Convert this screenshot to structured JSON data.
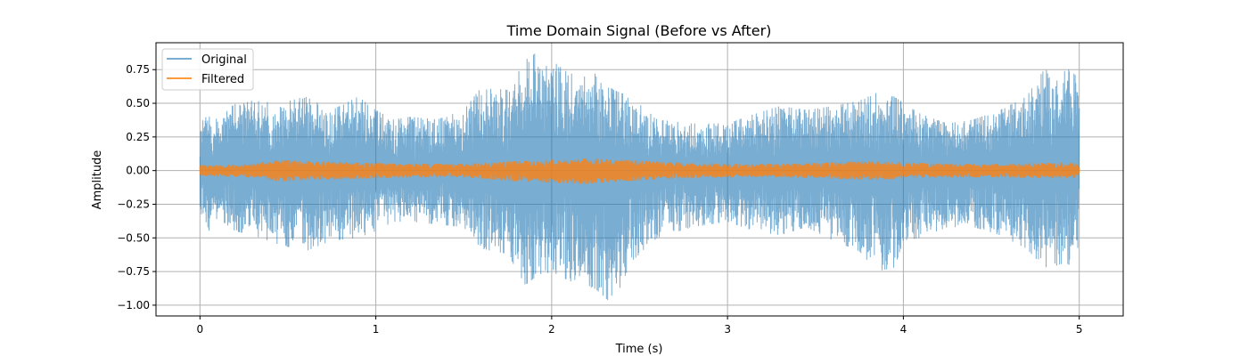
{
  "chart_data": {
    "type": "line",
    "title": "Time Domain Signal (Before vs After)",
    "xlabel": "Time (s)",
    "ylabel": "Amplitude",
    "xlim": [
      -0.25,
      5.25
    ],
    "ylim": [
      -1.08,
      0.95
    ],
    "xticks": [
      0,
      1,
      2,
      3,
      4,
      5
    ],
    "xtick_labels": [
      "0",
      "1",
      "2",
      "3",
      "4",
      "5"
    ],
    "yticks": [
      -1.0,
      -0.75,
      -0.5,
      -0.25,
      0.0,
      0.25,
      0.5,
      0.75
    ],
    "ytick_labels": [
      "−1.00",
      "−0.75",
      "−0.50",
      "−0.25",
      "0.00",
      "0.25",
      "0.50",
      "0.75"
    ],
    "grid": true,
    "legend_position": "top-left",
    "x_range": [
      0,
      5
    ],
    "series": [
      {
        "name": "Original",
        "color": "#1f77b4",
        "alpha": 0.6,
        "envelope": {
          "t": [
            0.0,
            0.05,
            0.1,
            0.2,
            0.3,
            0.45,
            0.6,
            0.75,
            0.9,
            1.0,
            1.1,
            1.2,
            1.35,
            1.5,
            1.6,
            1.75,
            1.85,
            1.9,
            2.0,
            2.1,
            2.25,
            2.35,
            2.45,
            2.6,
            2.8,
            3.0,
            3.15,
            3.3,
            3.45,
            3.6,
            3.75,
            3.85,
            3.95,
            4.0,
            4.1,
            4.25,
            4.4,
            4.55,
            4.7,
            4.8,
            4.9,
            4.95,
            5.0
          ],
          "upper": [
            0.35,
            0.42,
            0.38,
            0.5,
            0.52,
            0.5,
            0.55,
            0.45,
            0.55,
            0.45,
            0.38,
            0.4,
            0.38,
            0.45,
            0.62,
            0.6,
            0.82,
            0.87,
            0.82,
            0.72,
            0.72,
            0.6,
            0.55,
            0.38,
            0.35,
            0.35,
            0.42,
            0.48,
            0.45,
            0.48,
            0.52,
            0.58,
            0.55,
            0.5,
            0.42,
            0.35,
            0.38,
            0.45,
            0.55,
            0.75,
            0.72,
            0.78,
            0.65
          ],
          "lower": [
            -0.3,
            -0.45,
            -0.35,
            -0.45,
            -0.48,
            -0.55,
            -0.6,
            -0.52,
            -0.5,
            -0.45,
            -0.38,
            -0.38,
            -0.4,
            -0.42,
            -0.58,
            -0.62,
            -0.85,
            -0.8,
            -0.75,
            -0.82,
            -0.88,
            -1.0,
            -0.68,
            -0.5,
            -0.42,
            -0.38,
            -0.45,
            -0.48,
            -0.42,
            -0.52,
            -0.6,
            -0.75,
            -0.72,
            -0.52,
            -0.5,
            -0.42,
            -0.42,
            -0.48,
            -0.58,
            -0.72,
            -0.7,
            -0.7,
            -0.55
          ]
        }
      },
      {
        "name": "Filtered",
        "color": "#ff7f0e",
        "alpha": 0.8,
        "envelope": {
          "t": [
            0.0,
            0.3,
            0.45,
            0.6,
            0.9,
            1.2,
            1.5,
            1.8,
            2.0,
            2.2,
            2.4,
            2.7,
            3.0,
            3.3,
            3.6,
            3.8,
            4.0,
            4.3,
            4.6,
            4.9,
            5.0
          ],
          "upper": [
            0.04,
            0.05,
            0.08,
            0.07,
            0.06,
            0.05,
            0.05,
            0.07,
            0.08,
            0.09,
            0.08,
            0.06,
            0.05,
            0.05,
            0.06,
            0.07,
            0.06,
            0.05,
            0.05,
            0.06,
            0.05
          ],
          "lower": [
            -0.04,
            -0.05,
            -0.08,
            -0.07,
            -0.06,
            -0.05,
            -0.05,
            -0.08,
            -0.09,
            -0.1,
            -0.08,
            -0.06,
            -0.05,
            -0.05,
            -0.06,
            -0.07,
            -0.06,
            -0.05,
            -0.05,
            -0.06,
            -0.05
          ]
        }
      }
    ]
  }
}
